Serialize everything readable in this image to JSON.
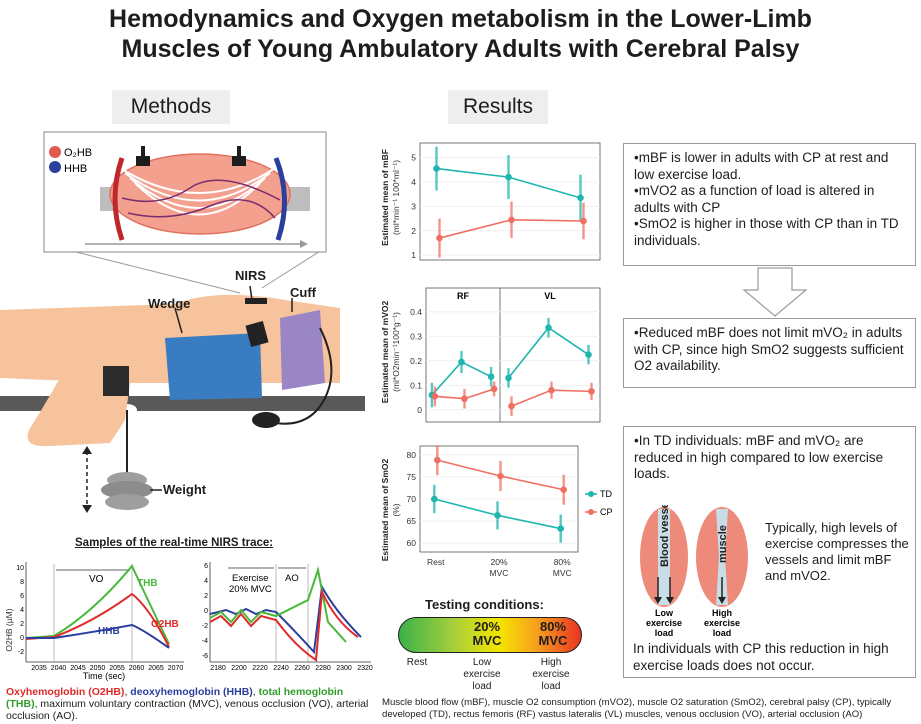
{
  "title_line1": "Hemodynamics and Oxygen metabolism in the Lower-Limb",
  "title_line2": "Muscles of Young Ambulatory Adults with Cerebral Palsy",
  "methods": {
    "heading": "Methods",
    "legend_o2hb": "O₂HB",
    "legend_hhb": "HHB",
    "labels": {
      "nirs": "NIRS",
      "cuff": "Cuff",
      "wedge": "Wedge",
      "weight": "Weight"
    },
    "trace_title": "Samples of the real-time NIRS trace:",
    "trace_left": {
      "ylabel": "O2HB (µM)",
      "xlabel": "Time (sec)",
      "yticks": [
        "10",
        "8",
        "6",
        "4",
        "2",
        "0",
        "-2"
      ],
      "xticks": [
        "2035",
        "2040",
        "2045",
        "2050",
        "2055",
        "2060",
        "2065",
        "2070"
      ],
      "vo": "VO",
      "thb": "THB",
      "o2hb": "O2HB",
      "hhb": "HHB"
    },
    "trace_right": {
      "yticks": [
        "6",
        "4",
        "2",
        "0",
        "-2",
        "-4",
        "-6"
      ],
      "xticks": [
        "2180",
        "2200",
        "2220",
        "2240",
        "2260",
        "2280",
        "2300",
        "2320"
      ],
      "exercise_l1": "Exercise",
      "exercise_l2": "20% MVC",
      "ao": "AO"
    },
    "caption_o2hb": "Oxyhemoglobin (O2HB)",
    "caption_sep1": ", ",
    "caption_hhb": "deoxyhemoglobin (HHB)",
    "caption_sep2": ", ",
    "caption_thb": "total hemoglobin (THB)",
    "caption_rest": ", maximum voluntary contraction (MVC), venous occlusion (VO), arterial occlusion (AO)."
  },
  "results": {
    "heading": "Results",
    "colors": {
      "td": "#1fb5b0",
      "cp": "#ef6f63"
    },
    "legend": {
      "td": "TD",
      "cp": "CP"
    },
    "x_categories": [
      "Rest",
      "20%\nMVC",
      "80%\nMVC"
    ],
    "chart_data": [
      {
        "type": "line",
        "ylabel_l1": "Estimated mean of mBF",
        "ylabel_l2": "(ml*min⁻¹ 100*ml⁻¹)",
        "ylim": [
          0.8,
          5.6
        ],
        "yticks": [
          1,
          2,
          3,
          4,
          5
        ],
        "series": [
          {
            "name": "TD",
            "values": [
              4.55,
              4.2,
              3.35
            ],
            "err": [
              0.9,
              0.9,
              0.95
            ]
          },
          {
            "name": "CP",
            "values": [
              1.7,
              2.45,
              2.4
            ],
            "err": [
              0.8,
              0.75,
              0.75
            ]
          }
        ]
      },
      {
        "type": "line",
        "ylabel_l1": "Estimated mean of mVO2",
        "ylabel_l2": "(ml*O2min⁻¹100*g⁻¹)",
        "ylim": [
          -0.05,
          0.44
        ],
        "yticks": [
          0.0,
          0.1,
          0.2,
          0.3,
          0.4
        ],
        "facets": [
          {
            "name": "RF",
            "series": [
              {
                "name": "TD",
                "values": [
                  0.06,
                  0.195,
                  0.135
                ],
                "err": [
                  0.05,
                  0.045,
                  0.04
                ]
              },
              {
                "name": "CP",
                "values": [
                  0.055,
                  0.045,
                  0.085
                ],
                "err": [
                  0.04,
                  0.04,
                  0.03
                ]
              }
            ]
          },
          {
            "name": "VL",
            "series": [
              {
                "name": "TD",
                "values": [
                  0.13,
                  0.335,
                  0.225
                ],
                "err": [
                  0.04,
                  0.04,
                  0.04
                ]
              },
              {
                "name": "CP",
                "values": [
                  0.015,
                  0.08,
                  0.075
                ],
                "err": [
                  0.04,
                  0.035,
                  0.035
                ]
              }
            ]
          }
        ]
      },
      {
        "type": "line",
        "ylabel_l1": "Estimated mean of SmO2",
        "ylabel_l2": "(%)",
        "ylim": [
          58,
          82
        ],
        "yticks": [
          60,
          65,
          70,
          75,
          80
        ],
        "series": [
          {
            "name": "TD",
            "values": [
              70,
              66.3,
              63.3
            ],
            "err": [
              3.2,
              3.2,
              3.2
            ]
          },
          {
            "name": "CP",
            "values": [
              78.8,
              75.2,
              72.1
            ],
            "err": [
              3.4,
              3.4,
              3.4
            ]
          }
        ]
      }
    ],
    "testing": {
      "title": "Testing conditions:",
      "mid_l1": "20%",
      "mid_l2": "MVC",
      "right_l1": "80%",
      "right_l2": "MVC",
      "label_rest": "Rest",
      "label_low_l1": "Low",
      "label_low_l2": "exercise",
      "label_low_l3": "load",
      "label_high_l1": "High",
      "label_high_l2": "exercise",
      "label_high_l3": "load"
    },
    "box1": [
      "mBF is lower in adults with CP at rest and low exercise load.",
      "mVO2 as a function of load is altered in adults with CP",
      "SmO2 is higher in those with CP than in TD individuals."
    ],
    "box2": "Reduced mBF does not limit mVO₂ in adults with CP, since high SmO2 suggests sufficient O2 availability.",
    "box3": {
      "top": "In TD individuals: mBF and mVO₂ are reduced in high compared to low exercise loads.",
      "vessel_label": "Blood vessel",
      "muscle_label": "muscle",
      "low_l1": "Low",
      "low_l2": "exercise",
      "low_l3": "load",
      "high_l1": "High",
      "high_l2": "exercise",
      "high_l3": "load",
      "typical": "Typically, high levels of exercise compresses the vessels and limit mBF and mVO2.",
      "bottom": "In individuals with CP this reduction in high exercise loads does not occur."
    },
    "footer": "Muscle blood flow (mBF), muscle O2 consumption (mVO2), muscle O2 saturation (SmO2), cerebral palsy (CP), typically developed (TD), rectus femoris (RF) vastus lateralis (VL) muscles, venous occlusion (VO), arterial occlusion (AO)"
  }
}
